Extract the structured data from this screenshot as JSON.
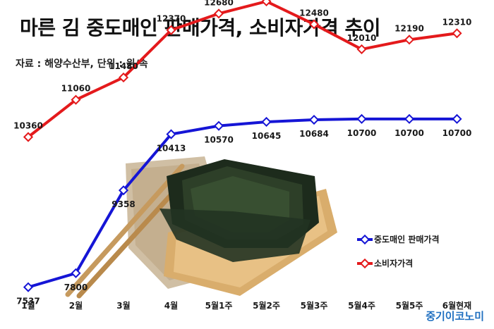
{
  "header": {
    "title": "마른 김 중도매인 판매가격, 소비자가격 추이",
    "source": "자료 : 해양수산부, 단위 : 원/속"
  },
  "brand": "중기이코노미",
  "colors": {
    "red_series": "#e41a1c",
    "blue_series": "#1515d6"
  },
  "chart_data": {
    "type": "line",
    "title": "마른 김 중도매인 판매가격, 소비자가격 추이",
    "unit": "원/속",
    "categories": [
      "1월",
      "2월",
      "3월",
      "4월",
      "5월1주",
      "5월2주",
      "5월3주",
      "5월4주",
      "5월5주",
      "6월현재"
    ],
    "series": [
      {
        "name": "중도매인 판매가격",
        "color": "#1515d6",
        "values": [
          7537,
          7800,
          9358,
          10413,
          10570,
          10645,
          10684,
          10700,
          10700,
          10700
        ]
      },
      {
        "name": "소비자가격",
        "color": "#e41a1c",
        "values": [
          10360,
          11060,
          11480,
          12370,
          12680,
          12910,
          12480,
          12010,
          12190,
          12310
        ]
      }
    ],
    "legend_position": "right",
    "grid": false
  }
}
